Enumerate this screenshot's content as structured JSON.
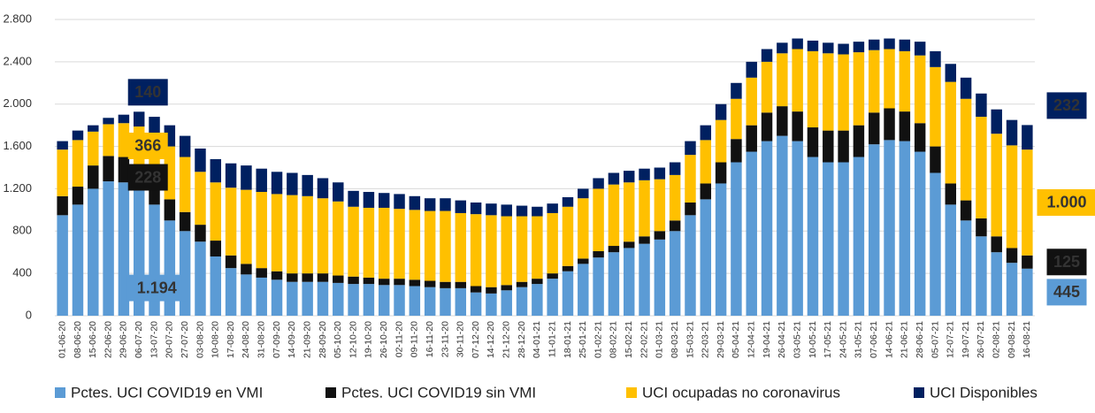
{
  "chart_data": {
    "type": "stacked_bar",
    "categories": [
      "01-06-20",
      "08-06-20",
      "15-06-20",
      "22-06-20",
      "29-06-20",
      "06-07-20",
      "13-07-20",
      "20-07-20",
      "27-07-20",
      "03-08-20",
      "10-08-20",
      "17-08-20",
      "24-08-20",
      "31-08-20",
      "07-09-20",
      "14-09-20",
      "21-09-20",
      "28-09-20",
      "05-10-20",
      "12-10-20",
      "19-10-20",
      "26-10-20",
      "02-11-20",
      "09-11-20",
      "16-11-20",
      "23-11-20",
      "30-11-20",
      "07-12-20",
      "14-12-20",
      "21-12-20",
      "28-12-20",
      "04-01-21",
      "11-01-21",
      "18-01-21",
      "25-01-21",
      "01-02-21",
      "08-02-21",
      "15-02-21",
      "22-02-21",
      "01-03-21",
      "08-03-21",
      "15-03-21",
      "22-03-21",
      "29-03-21",
      "05-04-21",
      "12-04-21",
      "19-04-21",
      "26-04-21",
      "03-05-21",
      "10-05-21",
      "17-05-21",
      "24-05-21",
      "31-05-21",
      "07-06-21",
      "14-06-21",
      "21-06-21",
      "28-06-21",
      "05-07-21",
      "12-07-21",
      "19-07-21",
      "26-07-21",
      "02-08-21",
      "09-08-21",
      "16-08-21"
    ],
    "series": [
      {
        "name": "Pctes. UCI COVID19 en VMI",
        "color": "#5b9bd5",
        "values": [
          950,
          1050,
          1200,
          1270,
          1260,
          1194,
          1050,
          900,
          800,
          700,
          560,
          450,
          390,
          360,
          340,
          320,
          320,
          320,
          310,
          300,
          300,
          290,
          290,
          280,
          270,
          260,
          260,
          220,
          210,
          240,
          270,
          300,
          350,
          420,
          490,
          550,
          600,
          640,
          680,
          720,
          800,
          950,
          1100,
          1250,
          1450,
          1550,
          1650,
          1700,
          1650,
          1500,
          1450,
          1450,
          1500,
          1620,
          1660,
          1650,
          1550,
          1350,
          1050,
          900,
          750,
          600,
          500,
          445
        ],
        "value_labels": [
          null,
          null,
          null,
          null,
          null,
          "1.194",
          null,
          null,
          null,
          null,
          null,
          null,
          null,
          null,
          null,
          null,
          null,
          null,
          null,
          null,
          null,
          null,
          null,
          null,
          null,
          null,
          null,
          null,
          null,
          null,
          null,
          null,
          null,
          null,
          null,
          null,
          null,
          null,
          null,
          null,
          null,
          null,
          null,
          null,
          null,
          null,
          null,
          null,
          null,
          null,
          null,
          null,
          null,
          null,
          null,
          null,
          null,
          null,
          null,
          null,
          null,
          null,
          null,
          "445"
        ]
      },
      {
        "name": "Pctes. UCI COVID19 sin VMI",
        "color": "#111111",
        "values": [
          180,
          170,
          220,
          240,
          240,
          228,
          220,
          200,
          180,
          160,
          150,
          120,
          100,
          90,
          80,
          80,
          80,
          80,
          70,
          70,
          60,
          60,
          60,
          60,
          60,
          60,
          60,
          60,
          60,
          50,
          50,
          50,
          50,
          50,
          50,
          60,
          60,
          60,
          70,
          80,
          100,
          120,
          150,
          200,
          220,
          250,
          270,
          280,
          280,
          280,
          300,
          300,
          300,
          300,
          300,
          280,
          270,
          250,
          200,
          190,
          170,
          150,
          140,
          125
        ],
        "value_labels": [
          null,
          null,
          null,
          null,
          null,
          "228",
          null,
          null,
          null,
          null,
          null,
          null,
          null,
          null,
          null,
          null,
          null,
          null,
          null,
          null,
          null,
          null,
          null,
          null,
          null,
          null,
          null,
          null,
          null,
          null,
          null,
          null,
          null,
          null,
          null,
          null,
          null,
          null,
          null,
          null,
          null,
          null,
          null,
          null,
          null,
          null,
          null,
          null,
          null,
          null,
          null,
          null,
          null,
          null,
          null,
          null,
          null,
          null,
          null,
          null,
          null,
          null,
          null,
          "125"
        ]
      },
      {
        "name": "UCI ocupadas no coronavirus",
        "color": "#ffc000",
        "values": [
          440,
          440,
          320,
          300,
          320,
          366,
          440,
          500,
          520,
          500,
          550,
          640,
          700,
          720,
          730,
          740,
          730,
          710,
          700,
          660,
          660,
          670,
          660,
          660,
          660,
          670,
          650,
          680,
          680,
          650,
          620,
          590,
          570,
          560,
          570,
          590,
          580,
          560,
          530,
          490,
          430,
          450,
          410,
          400,
          380,
          450,
          480,
          500,
          590,
          720,
          730,
          720,
          690,
          590,
          560,
          570,
          640,
          750,
          960,
          960,
          960,
          970,
          970,
          1000
        ],
        "value_labels": [
          null,
          null,
          null,
          null,
          null,
          "366",
          null,
          null,
          null,
          null,
          null,
          null,
          null,
          null,
          null,
          null,
          null,
          null,
          null,
          null,
          null,
          null,
          null,
          null,
          null,
          null,
          null,
          null,
          null,
          null,
          null,
          null,
          null,
          null,
          null,
          null,
          null,
          null,
          null,
          null,
          null,
          null,
          null,
          null,
          null,
          null,
          null,
          null,
          null,
          null,
          null,
          null,
          null,
          null,
          null,
          null,
          null,
          null,
          null,
          null,
          null,
          null,
          null,
          "1.000"
        ]
      },
      {
        "name": "UCI Disponibles",
        "color": "#002060",
        "values": [
          80,
          90,
          60,
          60,
          80,
          140,
          170,
          200,
          200,
          220,
          220,
          230,
          230,
          220,
          210,
          210,
          200,
          190,
          180,
          150,
          150,
          140,
          140,
          130,
          120,
          120,
          120,
          110,
          110,
          110,
          100,
          90,
          90,
          90,
          90,
          100,
          110,
          110,
          110,
          110,
          120,
          130,
          140,
          150,
          150,
          150,
          120,
          100,
          100,
          100,
          100,
          100,
          100,
          100,
          100,
          110,
          130,
          150,
          170,
          200,
          220,
          230,
          240,
          232
        ],
        "value_labels": [
          null,
          null,
          null,
          null,
          null,
          "140",
          null,
          null,
          null,
          null,
          null,
          null,
          null,
          null,
          null,
          null,
          null,
          null,
          null,
          null,
          null,
          null,
          null,
          null,
          null,
          null,
          null,
          null,
          null,
          null,
          null,
          null,
          null,
          null,
          null,
          null,
          null,
          null,
          null,
          null,
          null,
          null,
          null,
          null,
          null,
          null,
          null,
          null,
          null,
          null,
          null,
          null,
          null,
          null,
          null,
          null,
          null,
          null,
          null,
          null,
          null,
          null,
          null,
          "232"
        ]
      }
    ],
    "ylim": [
      0,
      2800
    ],
    "yticks": [
      0,
      400,
      800,
      {
        "value": 1200,
        "label": "1.200"
      },
      {
        "value": 1600,
        "label": "1.600"
      },
      {
        "value": 2000,
        "label": "2.000"
      },
      {
        "value": 2400,
        "label": "2.400"
      },
      {
        "value": 2800,
        "label": "2.800"
      }
    ],
    "grid": true,
    "legend": "bottom"
  }
}
